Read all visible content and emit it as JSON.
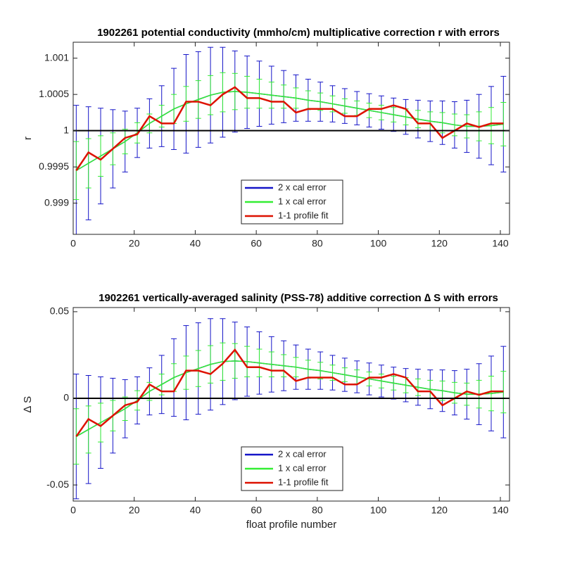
{
  "chart_data": [
    {
      "type": "errorbar",
      "title": "1902261 potential conductivity (mmho/cm) multiplicative correction r with errors",
      "ylabel": "r",
      "x": [
        1,
        5,
        9,
        13,
        17,
        21,
        25,
        29,
        33,
        37,
        41,
        45,
        49,
        53,
        57,
        61,
        65,
        69,
        73,
        77,
        81,
        85,
        89,
        93,
        97,
        101,
        105,
        109,
        113,
        117,
        121,
        125,
        129,
        133,
        137,
        141
      ],
      "series": [
        {
          "name": "2 x cal error",
          "color": "#1414c8",
          "values": [
            0.99945,
            0.99955,
            0.99965,
            0.99975,
            0.99985,
            0.99997,
            1.0001,
            1.0002,
            1.0003,
            1.00037,
            1.00043,
            1.00049,
            1.00053,
            1.00054,
            1.00053,
            1.00051,
            1.00049,
            1.00047,
            1.00045,
            1.00042,
            1.0004,
            1.00037,
            1.00034,
            1.00031,
            1.00028,
            1.00025,
            1.00022,
            1.00019,
            1.00016,
            1.00013,
            1.00011,
            1.00008,
            1.00006,
            1.00006,
            1.00007,
            1.00009
          ],
          "errors": [
            0.0009,
            0.00078,
            0.00066,
            0.00054,
            0.00042,
            0.00034,
            0.00034,
            0.00042,
            0.00056,
            0.00068,
            0.00066,
            0.00066,
            0.00062,
            0.00056,
            0.0005,
            0.00045,
            0.0004,
            0.00036,
            0.00032,
            0.00029,
            0.00027,
            0.00025,
            0.00024,
            0.00023,
            0.00023,
            0.00023,
            0.00023,
            0.00024,
            0.00026,
            0.00028,
            0.0003,
            0.00032,
            0.00036,
            0.00044,
            0.00054,
            0.00066
          ]
        },
        {
          "name": "1 x cal error",
          "color": "#33ee33",
          "values": [
            0.99945,
            0.99955,
            0.99965,
            0.99975,
            0.99985,
            0.99997,
            1.0001,
            1.0002,
            1.0003,
            1.00037,
            1.00043,
            1.00049,
            1.00053,
            1.00054,
            1.00053,
            1.00051,
            1.00049,
            1.00047,
            1.00045,
            1.00042,
            1.0004,
            1.00037,
            1.00034,
            1.00031,
            1.00028,
            1.00025,
            1.00022,
            1.00019,
            1.00016,
            1.00013,
            1.00011,
            1.00008,
            1.00006,
            1.00006,
            1.00007,
            1.00009
          ],
          "errors": [
            0.0004,
            0.00034,
            0.00028,
            0.00022,
            0.00017,
            0.00014,
            0.00013,
            0.00015,
            0.0002,
            0.00024,
            0.00026,
            0.00027,
            0.00027,
            0.00025,
            0.00022,
            0.0002,
            0.00018,
            0.00016,
            0.00014,
            0.00013,
            0.00012,
            0.00011,
            0.0001,
            0.0001,
            0.0001,
            0.0001,
            0.0001,
            0.00011,
            0.00012,
            0.00013,
            0.00014,
            0.00015,
            0.00016,
            0.0002,
            0.00025,
            0.0003
          ]
        },
        {
          "name": "1-1 profile fit",
          "color": "#dd1100",
          "values": [
            0.99945,
            0.9997,
            0.9996,
            0.99975,
            0.9999,
            0.99995,
            1.0002,
            1.0001,
            1.0001,
            1.0004,
            1.0004,
            1.00035,
            1.0005,
            1.0006,
            1.00045,
            1.00045,
            1.0004,
            1.0004,
            1.00025,
            1.0003,
            1.0003,
            1.0003,
            1.0002,
            1.0002,
            1.0003,
            1.0003,
            1.00035,
            1.0003,
            1.0001,
            1.0001,
            0.9999,
            1.0,
            1.0001,
            1.00005,
            1.0001,
            1.0001
          ]
        }
      ],
      "xlim": [
        0,
        143
      ],
      "ylim": [
        0.99857,
        1.00122
      ],
      "xticks": [
        0,
        20,
        40,
        60,
        80,
        100,
        120,
        140
      ],
      "yticks": [
        0.999,
        0.9995,
        1,
        1.0005,
        1.001
      ],
      "hline": 1,
      "legend": "south"
    },
    {
      "type": "errorbar",
      "title": "1902261 vertically-averaged salinity (PSS-78) additive correction ∆ S with errors",
      "ylabel": "∆ S",
      "xlabel": "float profile number",
      "x": [
        1,
        5,
        9,
        13,
        17,
        21,
        25,
        29,
        33,
        37,
        41,
        45,
        49,
        53,
        57,
        61,
        65,
        69,
        73,
        77,
        81,
        85,
        89,
        93,
        97,
        101,
        105,
        109,
        113,
        117,
        121,
        125,
        129,
        133,
        137,
        141
      ],
      "series": [
        {
          "name": "2 x cal error",
          "color": "#1414c8",
          "values": [
            -0.022,
            -0.018,
            -0.014,
            -0.01,
            -0.006,
            -0.0012,
            0.004,
            0.008,
            0.012,
            0.0148,
            0.0172,
            0.0196,
            0.0212,
            0.0216,
            0.0212,
            0.0204,
            0.0196,
            0.0188,
            0.018,
            0.0168,
            0.016,
            0.0148,
            0.0136,
            0.0124,
            0.0112,
            0.01,
            0.0088,
            0.0076,
            0.0064,
            0.0052,
            0.0044,
            0.0032,
            0.0024,
            0.0024,
            0.0028,
            0.0036
          ],
          "errors": [
            0.036,
            0.0312,
            0.0264,
            0.0216,
            0.0168,
            0.0136,
            0.0136,
            0.0168,
            0.0224,
            0.0272,
            0.0264,
            0.0264,
            0.0248,
            0.0224,
            0.02,
            0.018,
            0.016,
            0.0144,
            0.0128,
            0.0116,
            0.0108,
            0.01,
            0.0096,
            0.0092,
            0.0092,
            0.0092,
            0.0092,
            0.0096,
            0.0104,
            0.0112,
            0.012,
            0.0128,
            0.0144,
            0.0176,
            0.0216,
            0.0264
          ]
        },
        {
          "name": "1 x cal error",
          "color": "#33ee33",
          "values": [
            -0.022,
            -0.018,
            -0.014,
            -0.01,
            -0.006,
            -0.0012,
            0.004,
            0.008,
            0.012,
            0.0148,
            0.0172,
            0.0196,
            0.0212,
            0.0216,
            0.0212,
            0.0204,
            0.0196,
            0.0188,
            0.018,
            0.0168,
            0.016,
            0.0148,
            0.0136,
            0.0124,
            0.0112,
            0.01,
            0.0088,
            0.0076,
            0.0064,
            0.0052,
            0.0044,
            0.0032,
            0.0024,
            0.0024,
            0.0028,
            0.0036
          ],
          "errors": [
            0.016,
            0.0136,
            0.0112,
            0.0088,
            0.0068,
            0.0056,
            0.0052,
            0.006,
            0.008,
            0.0096,
            0.0104,
            0.0108,
            0.0108,
            0.01,
            0.0088,
            0.008,
            0.0072,
            0.0064,
            0.0056,
            0.0052,
            0.0048,
            0.0044,
            0.004,
            0.004,
            0.004,
            0.004,
            0.004,
            0.0044,
            0.0048,
            0.0052,
            0.0056,
            0.006,
            0.0064,
            0.008,
            0.01,
            0.012
          ]
        },
        {
          "name": "1-1 profile fit",
          "color": "#dd1100",
          "values": [
            -0.022,
            -0.012,
            -0.016,
            -0.01,
            -0.004,
            -0.002,
            0.008,
            0.004,
            0.004,
            0.016,
            0.016,
            0.014,
            0.02,
            0.028,
            0.018,
            0.018,
            0.016,
            0.016,
            0.01,
            0.012,
            0.012,
            0.012,
            0.008,
            0.008,
            0.012,
            0.012,
            0.014,
            0.012,
            0.004,
            0.004,
            -0.004,
            0,
            0.004,
            0.002,
            0.004,
            0.004
          ]
        }
      ],
      "xlim": [
        0,
        143
      ],
      "ylim": [
        -0.0593,
        0.0524
      ],
      "xticks": [
        0,
        20,
        40,
        60,
        80,
        100,
        120,
        140
      ],
      "yticks": [
        -0.05,
        0,
        0.05
      ],
      "hline": 0,
      "legend": "south"
    }
  ]
}
